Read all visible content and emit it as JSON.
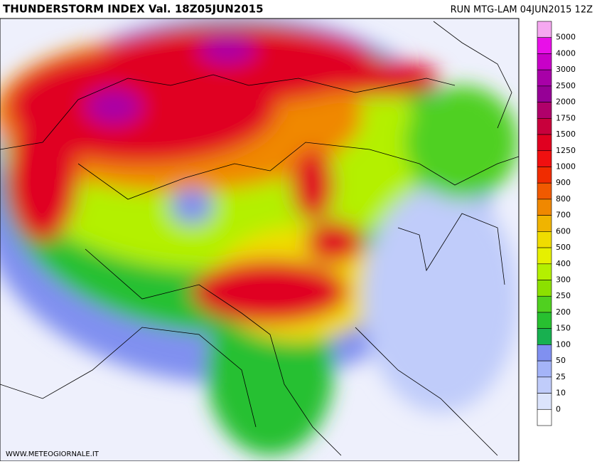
{
  "header": {
    "title": "THUNDERSTORM INDEX Val. 18Z05JUN2015",
    "run": "RUN MTG-LAM 04JUN2015 12Z"
  },
  "legend": {
    "labels": [
      "5000",
      "4000",
      "3000",
      "2500",
      "2000",
      "1750",
      "1500",
      "1250",
      "1000",
      "900",
      "800",
      "700",
      "600",
      "500",
      "400",
      "300",
      "250",
      "200",
      "150",
      "100",
      "50",
      "25",
      "10",
      "0"
    ],
    "colors": [
      "#f5a8f0",
      "#e810e8",
      "#c800c8",
      "#a800a8",
      "#960096",
      "#b0006a",
      "#c8003c",
      "#e00020",
      "#f01010",
      "#f02c00",
      "#f05a00",
      "#f08800",
      "#f0b400",
      "#f0dc00",
      "#e6f000",
      "#b4f000",
      "#8ce000",
      "#50d020",
      "#28c030",
      "#18b050",
      "#8090f0",
      "#a4b4f8",
      "#c0ccfa",
      "#dce4fc",
      "#ffffff"
    ]
  },
  "footer": {
    "website": "WWW.METEOGIORNALE.IT"
  }
}
